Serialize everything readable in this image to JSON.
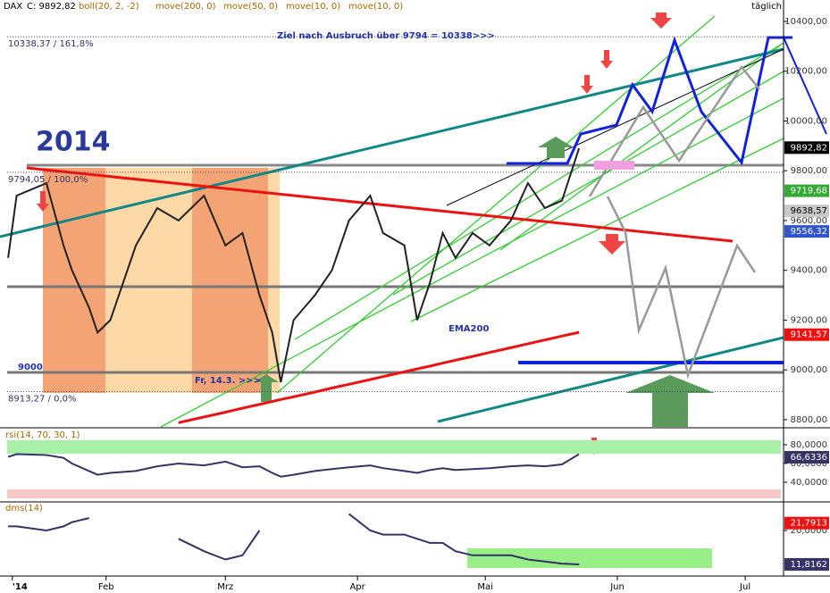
{
  "chart_data": [
    {
      "type": "line",
      "header": [
        "C: 9892,82",
        "boll(20, 2, -2)",
        "move(200, 0)",
        "move(50, 0)",
        "move(10, 0)",
        "move(10, 0)"
      ],
      "period": "täglich",
      "x": [
        9,
        11,
        18,
        22,
        24,
        28,
        30,
        33,
        39,
        44,
        49,
        55,
        60,
        64,
        68,
        71,
        73,
        76,
        81,
        85,
        89,
        94,
        97,
        102,
        105,
        108,
        111,
        114,
        118,
        122,
        127,
        131,
        135,
        139,
        143
      ],
      "series": [
        {
          "name": "DAX",
          "color": "#222222",
          "values": [
            9450,
            9700,
            9750,
            9500,
            9400,
            9250,
            9150,
            9200,
            9500,
            9650,
            9600,
            9700,
            9500,
            9550,
            9300,
            9150,
            8950,
            9200,
            9300,
            9400,
            9600,
            9700,
            9550,
            9500,
            9200,
            9350,
            9550,
            9450,
            9550,
            9500,
            9600,
            9750,
            9650,
            9680,
            9890
          ]
        },
        {
          "name": "EMA200",
          "color": "#ee1111",
          "values": [
            null,
            null,
            null,
            null,
            null,
            null,
            null,
            null,
            null,
            null,
            8788,
            8811,
            8830,
            8846,
            8861,
            8873,
            8881,
            8892,
            8911,
            8927,
            8942,
            8961,
            8973,
            8992,
            9004,
            9015,
            9027,
            9039,
            9054,
            9070,
            9089,
            9105,
            9120,
            9136,
            9151
          ]
        }
      ],
      "xlim": [
        7.1,
        191
      ],
      "xticks": [
        {
          "value": 10,
          "label": "'14"
        },
        {
          "value": 32,
          "label": "Feb"
        },
        {
          "value": 60,
          "label": "Mrz"
        },
        {
          "value": 91,
          "label": "Apr"
        },
        {
          "value": 121,
          "label": "Mai"
        },
        {
          "value": 152,
          "label": "Jun"
        },
        {
          "value": 182,
          "label": "Jul"
        }
      ],
      "ylim": [
        8771,
        10486
      ],
      "yticks": [
        {
          "value": 8800,
          "label": "8800,00"
        },
        {
          "value": 9000,
          "label": "9000,00"
        },
        {
          "value": 9200,
          "label": "9200,00"
        },
        {
          "value": 9400,
          "label": "9400,00"
        },
        {
          "value": 9600,
          "label": "9600,00"
        },
        {
          "value": 9800,
          "label": "9800,00"
        },
        {
          "value": 10000,
          "label": "10000,00"
        },
        {
          "value": 10200,
          "label": "10200,00"
        },
        {
          "value": 10400,
          "label": "10400,00"
        }
      ],
      "price_labels": [
        {
          "value": 9892.82,
          "label": "9892,82",
          "color": "#000000"
        },
        {
          "value": 9719.68,
          "label": "9719,68",
          "color": "#33aa33"
        },
        {
          "value": 9638.57,
          "label": "9638,57",
          "color": "#c8c8c8"
        },
        {
          "value": 9556.32,
          "label": "9556,32",
          "color": "#3355cc"
        },
        {
          "value": 9141.57,
          "label": "9141,57",
          "color": "#ee1111"
        }
      ],
      "levels": [
        {
          "value": 10338.37,
          "label": "10338,37 / 161,8%"
        },
        {
          "value": 9794.05,
          "label": "9794,05 / 100,0%"
        },
        {
          "value": 8913.27,
          "label": "8913,27 / 0,0%"
        }
      ],
      "annotations": [
        "2014",
        "Ziel nach Ausbruch über 9794 = 10338>>>",
        "9000",
        "Fr, 14.3. >>>"
      ]
    },
    {
      "type": "line",
      "title": "rsi(14, 70, 30, 1)",
      "series": [
        {
          "name": "rsi",
          "color": "#333366",
          "values": [
            67,
            70,
            69,
            66,
            60,
            52,
            48,
            50,
            52,
            57,
            60,
            58,
            62,
            56,
            57,
            50,
            46,
            48,
            52,
            54,
            56,
            58,
            55,
            52,
            50,
            53,
            55,
            53,
            54,
            55,
            57,
            58,
            57,
            59,
            70
          ]
        }
      ],
      "ylim": [
        19,
        97.1
      ],
      "yticks": [
        {
          "value": 40,
          "label": "40,0000"
        },
        {
          "value": 60,
          "label": "60,0000"
        },
        {
          "value": 80,
          "label": "80,0000"
        }
      ],
      "price_labels": [
        {
          "value": 66.6336,
          "label": "66,6336",
          "color": "#333366"
        }
      ]
    },
    {
      "type": "line",
      "title": "dms(14)",
      "series": [
        {
          "name": "dms",
          "color": "#333366",
          "values": [
            21,
            21,
            20,
            21,
            22,
            23,
            null,
            null,
            null,
            null,
            18,
            15,
            13,
            14,
            20,
            null,
            null,
            null,
            null,
            null,
            24,
            20,
            19,
            19,
            18,
            17,
            17,
            15,
            14,
            14,
            14,
            13,
            12.5,
            12,
            11.8
          ]
        }
      ],
      "ylim": [
        9,
        26.9
      ],
      "yticks": [
        {
          "value": 20,
          "label": "20,0000"
        }
      ],
      "price_labels": [
        {
          "value": 21.7913,
          "label": "21,7913",
          "color": "#ee1111"
        },
        {
          "value": 11.8162,
          "label": "11,8162",
          "color": "#333366"
        }
      ]
    }
  ]
}
